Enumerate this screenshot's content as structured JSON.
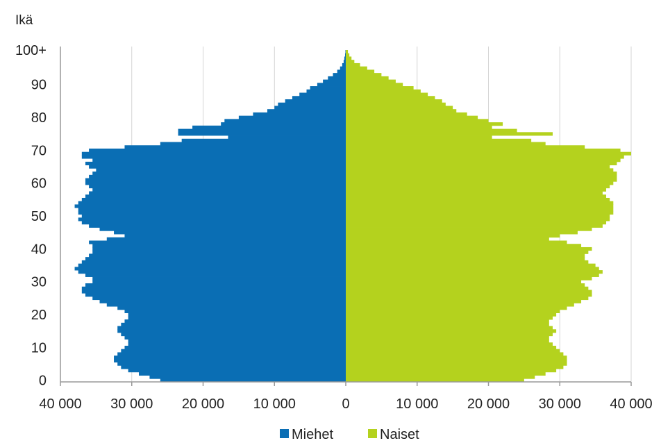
{
  "chart_data": {
    "type": "bar",
    "orientation": "horizontal-population-pyramid",
    "ylabel": "Ikä",
    "y_ticks": [
      "0",
      "10",
      "20",
      "30",
      "40",
      "50",
      "60",
      "70",
      "80",
      "90",
      "100+"
    ],
    "x_ticks": [
      "40 000",
      "30 000",
      "20 000",
      "10 000",
      "0",
      "10 000",
      "20 000",
      "30 000",
      "40 000"
    ],
    "xlim": [
      -40000,
      40000
    ],
    "ylim": [
      0,
      100
    ],
    "grid": "vertical",
    "legend": {
      "position": "bottom-center"
    },
    "ages": [
      0,
      1,
      2,
      3,
      4,
      5,
      6,
      7,
      8,
      9,
      10,
      11,
      12,
      13,
      14,
      15,
      16,
      17,
      18,
      19,
      20,
      21,
      22,
      23,
      24,
      25,
      26,
      27,
      28,
      29,
      30,
      31,
      32,
      33,
      34,
      35,
      36,
      37,
      38,
      39,
      40,
      41,
      42,
      43,
      44,
      45,
      46,
      47,
      48,
      49,
      50,
      51,
      52,
      53,
      54,
      55,
      56,
      57,
      58,
      59,
      60,
      61,
      62,
      63,
      64,
      65,
      66,
      67,
      68,
      69,
      70,
      71,
      72,
      73,
      74,
      75,
      76,
      77,
      78,
      79,
      80,
      81,
      82,
      83,
      84,
      85,
      86,
      87,
      88,
      89,
      90,
      91,
      92,
      93,
      94,
      95,
      96,
      97,
      98,
      99,
      100
    ],
    "series": [
      {
        "name": "Miehet",
        "color": "#0a6eb4",
        "values": [
          26000,
          27500,
          29000,
          30500,
          31500,
          32000,
          32500,
          32500,
          32000,
          31500,
          31000,
          30500,
          30500,
          31000,
          31500,
          32000,
          32000,
          31500,
          31000,
          30500,
          30500,
          31000,
          32000,
          33500,
          34500,
          35500,
          36500,
          37000,
          37000,
          36500,
          35500,
          35500,
          36500,
          37500,
          38000,
          37500,
          37000,
          36500,
          36000,
          35500,
          35500,
          35500,
          36000,
          33500,
          31000,
          32500,
          34500,
          36000,
          37000,
          37500,
          37000,
          37500,
          37500,
          38000,
          37500,
          37000,
          36500,
          36000,
          35500,
          36000,
          36500,
          36500,
          36000,
          35500,
          35000,
          36000,
          36500,
          35500,
          37000,
          37000,
          36000,
          31000,
          26000,
          23000,
          16500,
          23500,
          23500,
          21500,
          17500,
          17000,
          15000,
          13000,
          11000,
          10000,
          9500,
          8500,
          7500,
          6500,
          5500,
          5000,
          4000,
          3200,
          2500,
          1800,
          1200,
          800,
          500,
          300,
          200,
          100,
          50
        ],
        "label": "Miehet"
      },
      {
        "name": "Naiset",
        "color": "#b4d21e",
        "values": [
          25000,
          26500,
          28000,
          29500,
          30500,
          31000,
          31000,
          31000,
          30500,
          30000,
          29500,
          29000,
          28500,
          28500,
          29000,
          29500,
          29000,
          28500,
          28500,
          29000,
          29500,
          30000,
          31000,
          32000,
          33000,
          34000,
          34500,
          34500,
          34000,
          33500,
          33000,
          34500,
          35500,
          36000,
          35500,
          35000,
          34000,
          33500,
          33500,
          34000,
          34500,
          33000,
          31000,
          28500,
          30000,
          32500,
          34500,
          36000,
          36500,
          37000,
          37000,
          37500,
          37500,
          37500,
          37500,
          37000,
          36500,
          36000,
          36500,
          37000,
          37500,
          38000,
          38000,
          38000,
          37500,
          37000,
          38000,
          38500,
          39000,
          40000,
          38500,
          33500,
          28000,
          26000,
          20500,
          29000,
          24000,
          20500,
          22000,
          20000,
          18500,
          17000,
          15500,
          15000,
          14000,
          13500,
          12500,
          11500,
          10500,
          9500,
          8000,
          7000,
          6000,
          5000,
          4000,
          3000,
          2000,
          1200,
          800,
          500,
          300
        ],
        "label": "Naiset"
      }
    ]
  }
}
